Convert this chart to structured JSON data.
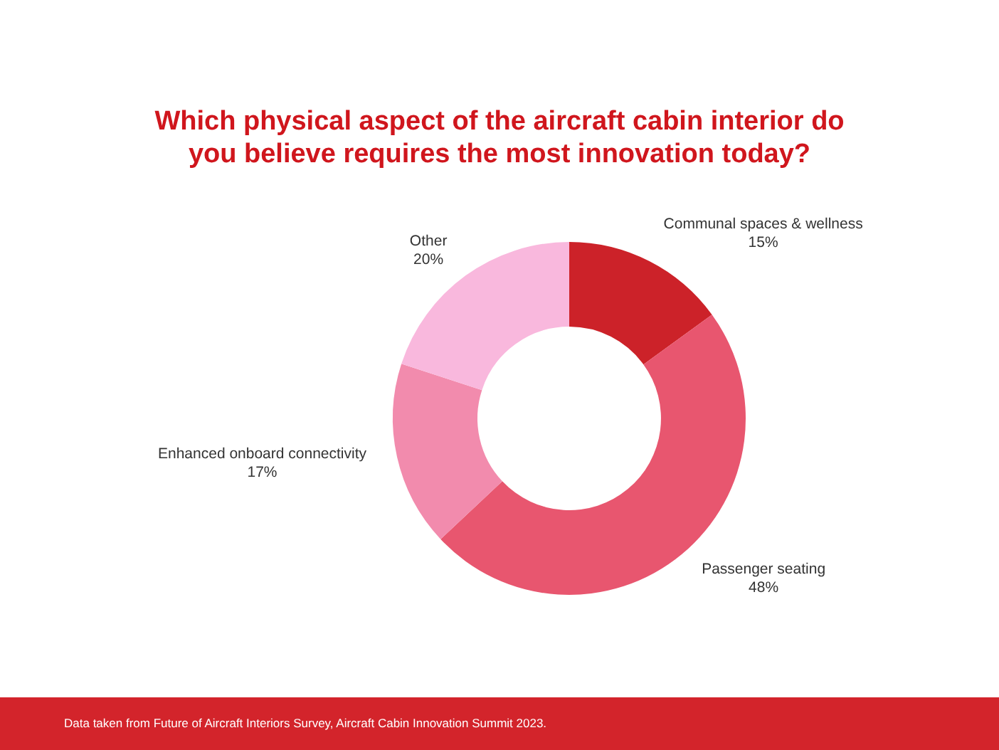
{
  "chart_data": {
    "type": "donut",
    "title": "Which physical aspect of the aircraft cabin interior do you believe requires the most innovation today?",
    "categories": [
      "Communal spaces & wellness",
      "Passenger seating",
      "Enhanced onboard connectivity",
      "Other"
    ],
    "values": [
      15,
      48,
      17,
      20
    ],
    "value_labels": [
      "15%",
      "48%",
      "17%",
      "20%"
    ],
    "colors": [
      "#cc2229",
      "#e8566f",
      "#f28bad",
      "#f9b8dd"
    ],
    "legend": false,
    "annotations": [
      "Data taken from Future of Aircraft Interiors Survey, Aircraft Cabin Innovation Summit 2023."
    ]
  }
}
